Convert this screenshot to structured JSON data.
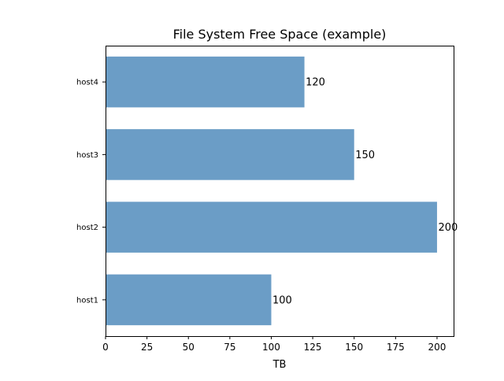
{
  "chart_data": {
    "type": "bar",
    "orientation": "horizontal",
    "title": "File System Free Space (example)",
    "xlabel": "TB",
    "ylabel": "",
    "categories": [
      "host1",
      "host2",
      "host3",
      "host4"
    ],
    "values": [
      100,
      200,
      150,
      120
    ],
    "value_labels": [
      "100",
      "200",
      "150",
      "120"
    ],
    "xlim": [
      0,
      210
    ],
    "xticks": [
      0,
      25,
      50,
      75,
      100,
      125,
      150,
      175,
      200
    ],
    "xtick_labels": [
      "0",
      "25",
      "50",
      "75",
      "100",
      "125",
      "150",
      "175",
      "200"
    ],
    "grid": false,
    "bar_color": "#6b9dc6",
    "bar_edge_color": "#5a8cb6"
  }
}
